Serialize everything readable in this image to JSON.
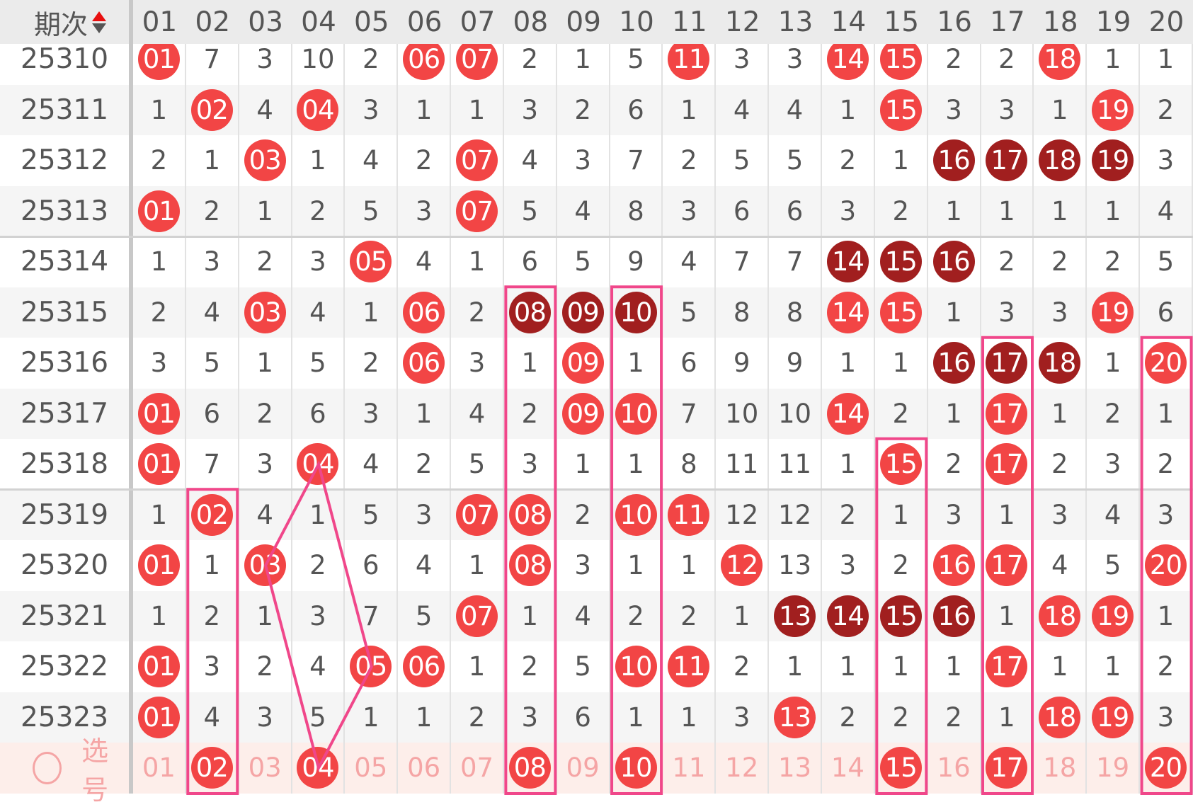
{
  "header": {
    "period_label": "期次",
    "sort_icon": "sort-up-down-icon",
    "columns": [
      "01",
      "02",
      "03",
      "04",
      "05",
      "06",
      "07",
      "08",
      "09",
      "10",
      "11",
      "12",
      "13",
      "14",
      "15",
      "16",
      "17",
      "18",
      "19",
      "20"
    ]
  },
  "rows": [
    {
      "period": "25310",
      "cells": [
        "r:01",
        "7",
        "3",
        "10",
        "2",
        "r:06",
        "r:07",
        "2",
        "1",
        "5",
        "r:11",
        "3",
        "3",
        "r:14",
        "r:15",
        "2",
        "2",
        "r:18",
        "1",
        "1"
      ]
    },
    {
      "period": "25311",
      "cells": [
        "1",
        "r:02",
        "4",
        "r:04",
        "3",
        "1",
        "1",
        "3",
        "2",
        "6",
        "1",
        "4",
        "4",
        "1",
        "r:15",
        "3",
        "3",
        "1",
        "r:19",
        "2"
      ]
    },
    {
      "period": "25312",
      "cells": [
        "2",
        "1",
        "r:03",
        "1",
        "4",
        "2",
        "r:07",
        "4",
        "3",
        "7",
        "2",
        "5",
        "5",
        "2",
        "1",
        "d:16",
        "d:17",
        "d:18",
        "d:19",
        "3"
      ]
    },
    {
      "period": "25313",
      "cells": [
        "r:01",
        "2",
        "1",
        "2",
        "5",
        "3",
        "r:07",
        "5",
        "4",
        "8",
        "3",
        "6",
        "6",
        "3",
        "2",
        "1",
        "1",
        "1",
        "1",
        "4"
      ]
    },
    {
      "period": "25314",
      "cells": [
        "1",
        "3",
        "2",
        "3",
        "r:05",
        "4",
        "1",
        "6",
        "5",
        "9",
        "4",
        "7",
        "7",
        "d:14",
        "d:15",
        "d:16",
        "2",
        "2",
        "2",
        "5"
      ]
    },
    {
      "period": "25315",
      "cells": [
        "2",
        "4",
        "r:03",
        "4",
        "1",
        "r:06",
        "2",
        "d:08",
        "d:09",
        "d:10",
        "5",
        "8",
        "8",
        "r:14",
        "r:15",
        "1",
        "3",
        "3",
        "r:19",
        "6"
      ]
    },
    {
      "period": "25316",
      "cells": [
        "3",
        "5",
        "1",
        "5",
        "2",
        "r:06",
        "3",
        "1",
        "r:09",
        "1",
        "6",
        "9",
        "9",
        "1",
        "1",
        "d:16",
        "d:17",
        "d:18",
        "1",
        "r:20"
      ]
    },
    {
      "period": "25317",
      "cells": [
        "r:01",
        "6",
        "2",
        "6",
        "3",
        "1",
        "4",
        "2",
        "r:09",
        "r:10",
        "7",
        "10",
        "10",
        "r:14",
        "2",
        "1",
        "r:17",
        "1",
        "2",
        "1"
      ]
    },
    {
      "period": "25318",
      "cells": [
        "r:01",
        "7",
        "3",
        "r:04",
        "4",
        "2",
        "5",
        "3",
        "1",
        "1",
        "8",
        "11",
        "11",
        "1",
        "r:15",
        "2",
        "r:17",
        "2",
        "3",
        "2"
      ]
    },
    {
      "period": "25319",
      "cells": [
        "1",
        "r:02",
        "4",
        "1",
        "5",
        "3",
        "r:07",
        "r:08",
        "2",
        "r:10",
        "r:11",
        "12",
        "12",
        "2",
        "1",
        "3",
        "1",
        "3",
        "4",
        "3"
      ]
    },
    {
      "period": "25320",
      "cells": [
        "r:01",
        "1",
        "r:03",
        "2",
        "6",
        "4",
        "1",
        "r:08",
        "3",
        "1",
        "1",
        "r:12",
        "13",
        "3",
        "2",
        "r:16",
        "r:17",
        "4",
        "5",
        "r:20"
      ]
    },
    {
      "period": "25321",
      "cells": [
        "1",
        "2",
        "1",
        "3",
        "7",
        "5",
        "r:07",
        "1",
        "4",
        "2",
        "2",
        "1",
        "d:13",
        "d:14",
        "d:15",
        "d:16",
        "1",
        "r:18",
        "r:19",
        "1"
      ]
    },
    {
      "period": "25322",
      "cells": [
        "r:01",
        "3",
        "2",
        "4",
        "r:05",
        "r:06",
        "1",
        "2",
        "5",
        "r:10",
        "r:11",
        "2",
        "1",
        "1",
        "1",
        "1",
        "r:17",
        "1",
        "1",
        "2"
      ]
    },
    {
      "period": "25323",
      "cells": [
        "r:01",
        "4",
        "3",
        "5",
        "1",
        "1",
        "2",
        "3",
        "6",
        "1",
        "1",
        "3",
        "r:13",
        "2",
        "2",
        "2",
        "1",
        "r:18",
        "r:19",
        "3"
      ]
    }
  ],
  "select_row": {
    "label": "选号",
    "radio_icon": "radio-unchecked-icon",
    "numbers": [
      "01",
      "02",
      "03",
      "04",
      "05",
      "06",
      "07",
      "08",
      "09",
      "10",
      "11",
      "12",
      "13",
      "14",
      "15",
      "16",
      "17",
      "18",
      "19",
      "20"
    ],
    "selected": [
      "02",
      "04",
      "08",
      "10",
      "15",
      "17",
      "20"
    ]
  },
  "highlight_columns": [
    {
      "col": "02",
      "from": "25319"
    },
    {
      "col": "08",
      "from": "25315"
    },
    {
      "col": "10",
      "from": "25315"
    },
    {
      "col": "15",
      "from": "25318"
    },
    {
      "col": "17",
      "from": "25316"
    },
    {
      "col": "20",
      "from": "25316"
    }
  ],
  "diamond_pattern": [
    {
      "col": "04",
      "period": "25318"
    },
    {
      "col": "03",
      "period": "25320"
    },
    {
      "col": "04",
      "period": "select"
    },
    {
      "col": "05",
      "period": "25322"
    }
  ],
  "colors": {
    "ball_red": "#f24545",
    "ball_dark": "#a11f1f",
    "highlight": "#f0478a",
    "select_text": "#f5a5a5"
  }
}
